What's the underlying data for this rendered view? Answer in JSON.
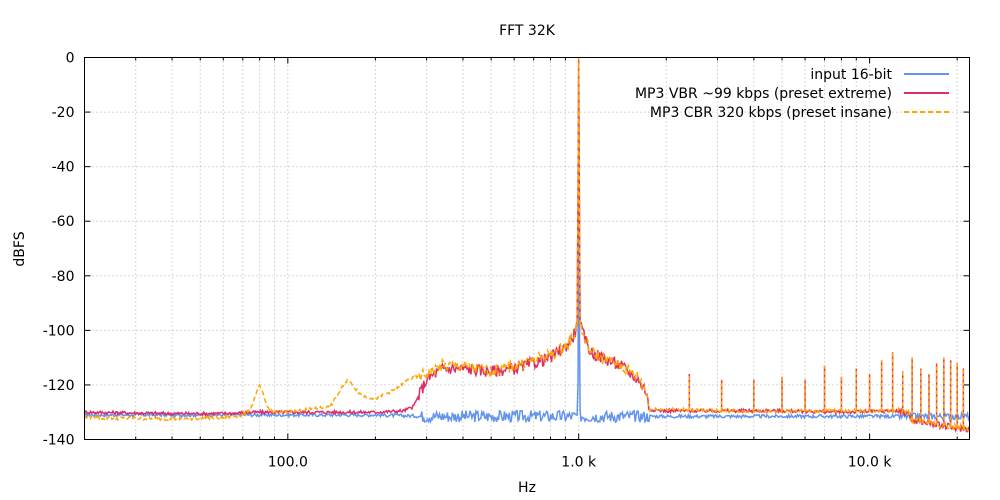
{
  "chart_data": {
    "type": "line",
    "title": "FFT 32K",
    "xlabel": "Hz",
    "ylabel": "dBFS",
    "xscale": "log",
    "xlim": [
      20,
      22050
    ],
    "ylim": [
      -140,
      0
    ],
    "x_ticks": [
      {
        "value": 100,
        "label": "100.0"
      },
      {
        "value": 1000,
        "label": "1.0 k"
      },
      {
        "value": 10000,
        "label": "10.0 k"
      }
    ],
    "y_ticks": [
      {
        "value": 0,
        "label": "0"
      },
      {
        "value": -20,
        "label": "-20"
      },
      {
        "value": -40,
        "label": "-40"
      },
      {
        "value": -60,
        "label": "-60"
      },
      {
        "value": -80,
        "label": "-80"
      },
      {
        "value": -100,
        "label": "-100"
      },
      {
        "value": -120,
        "label": "-120"
      },
      {
        "value": -140,
        "label": "-140"
      }
    ],
    "grid": true,
    "legend_position": "top-right",
    "series": [
      {
        "name": "input 16-bit",
        "color": "#6495ed",
        "dash": "solid",
        "x": [
          20,
          50,
          100,
          200,
          300,
          500,
          700,
          900,
          980,
          995,
          1000,
          1005,
          1020,
          1200,
          1500,
          2000,
          3000,
          5000,
          8000,
          12000,
          16000,
          20000,
          22050
        ],
        "y": [
          -131,
          -131,
          -131,
          -131,
          -131.5,
          -131.5,
          -131.5,
          -131.5,
          -131.5,
          -131,
          0,
          -131,
          -131.5,
          -131.5,
          -131.5,
          -131.5,
          -131.5,
          -131.5,
          -131.5,
          -131.5,
          -131.5,
          -131.5,
          -131.5
        ]
      },
      {
        "name": "MP3 VBR ~99 kbps (preset extreme)",
        "color": "#dc2f6a",
        "dash": "solid",
        "x": [
          20,
          40,
          60,
          80,
          100,
          150,
          200,
          250,
          270,
          300,
          340,
          400,
          500,
          600,
          700,
          800,
          900,
          960,
          990,
          1000,
          1010,
          1040,
          1100,
          1200,
          1400,
          1600,
          1700,
          1750,
          2000,
          3000,
          5000,
          8000,
          12000,
          13500,
          14000,
          16000,
          18000,
          20000,
          22050
        ],
        "y": [
          -130,
          -130.5,
          -130.5,
          -130,
          -130,
          -130,
          -130,
          -129.5,
          -128,
          -118,
          -114,
          -114,
          -115,
          -114,
          -112,
          -110,
          -106,
          -102,
          -98,
          0,
          -98,
          -102,
          -108,
          -110,
          -113,
          -118,
          -122,
          -129,
          -129.5,
          -129.5,
          -129.5,
          -130,
          -129.5,
          -130,
          -133,
          -134,
          -135,
          -136,
          -136
        ]
      },
      {
        "name": "MP3 CBR 320 kbps (preset insane)",
        "color": "#ffa500",
        "dash": "dashed",
        "x": [
          20,
          40,
          60,
          70,
          75,
          80,
          85,
          90,
          100,
          140,
          160,
          180,
          200,
          230,
          260,
          300,
          340,
          400,
          500,
          600,
          700,
          800,
          900,
          960,
          990,
          1000,
          1010,
          1040,
          1100,
          1200,
          1400,
          1600,
          1700,
          1750,
          2000,
          3000,
          5000,
          8000,
          12000,
          13500,
          14000,
          16000,
          18000,
          20000,
          22050
        ],
        "y": [
          -132,
          -132.5,
          -132,
          -131,
          -128,
          -120,
          -128,
          -130,
          -130,
          -128,
          -118,
          -124,
          -125,
          -122,
          -118,
          -116,
          -113,
          -113,
          -115,
          -113,
          -111,
          -109,
          -106,
          -102,
          -97,
          0,
          -98,
          -102,
          -108,
          -110,
          -113,
          -117,
          -122,
          -129,
          -129,
          -129.5,
          -129.5,
          -129.5,
          -129.5,
          -130,
          -133,
          -134,
          -135,
          -135.5,
          -136
        ]
      }
    ],
    "harmonic_spikes": {
      "x": [
        2400,
        3100,
        4000,
        5000,
        6000,
        7000,
        8000,
        9000,
        10000,
        11000,
        12000,
        13000,
        14000,
        15000,
        16000,
        17000,
        18000,
        19000,
        20000,
        21000
      ],
      "y": [
        -116,
        -118,
        -118,
        -117,
        -118,
        -113,
        -117,
        -114,
        -116,
        -111,
        -108,
        -115,
        -110,
        -114,
        -116,
        -112,
        -110,
        -111,
        -112,
        -114
      ]
    }
  }
}
